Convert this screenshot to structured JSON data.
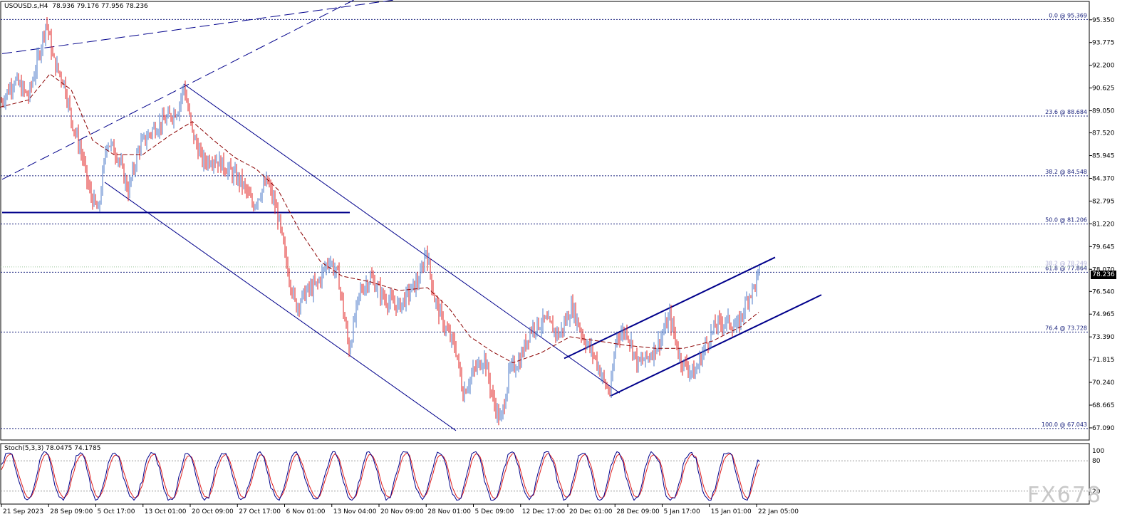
{
  "header": {
    "symbol_text": "USOUSD.s,H4  78.936 79.176 77.956 78.236"
  },
  "stoch_header": {
    "text": "Stoch(5,3,3) 78.0475 74.1785"
  },
  "watermark": "FX678",
  "current_price_label": "78.236",
  "colors": {
    "bull": "#4b78c8",
    "bear": "#e02020",
    "ma": "#8b0000",
    "channel": "#00008b",
    "fib": "#1a237e",
    "stoch_main": "#00008b",
    "stoch_signal": "#e02020"
  },
  "chart_data": {
    "type": "candlestick",
    "symbol": "USOUSD.s",
    "timeframe": "H4",
    "ohlc_last": {
      "open": 78.936,
      "high": 79.176,
      "low": 77.956,
      "close": 78.236
    },
    "ylim": [
      66.25,
      96.62
    ],
    "y_ticks": [
      "95.350",
      "93.775",
      "92.200",
      "90.625",
      "89.050",
      "87.520",
      "85.945",
      "84.370",
      "82.795",
      "81.220",
      "79.645",
      "78.070",
      "76.540",
      "74.965",
      "73.390",
      "71.815",
      "70.240",
      "68.665",
      "67.090"
    ],
    "x_ticks": [
      "21 Sep 2023",
      "28 Sep 09:00",
      "5 Oct 17:00",
      "13 Oct 01:00",
      "20 Oct 09:00",
      "27 Oct 17:00",
      "6 Nov 01:00",
      "13 Nov 04:00",
      "20 Nov 09:00",
      "28 Nov 01:00",
      "5 Dec 09:00",
      "12 Dec 17:00",
      "20 Dec 01:00",
      "28 Dec 09:00",
      "5 Jan 17:00",
      "15 Jan 01:00",
      "22 Jan 05:00"
    ],
    "fib_levels": [
      {
        "label": "0.0 @ 95.369",
        "value": 95.369
      },
      {
        "label": "23.6 @ 88.684",
        "value": 88.684
      },
      {
        "label": "38.2 @ 84.548",
        "value": 84.548
      },
      {
        "label": "50.0 @ 81.206",
        "value": 81.206
      },
      {
        "label": "61.8 @ 77.864",
        "value": 77.864
      },
      {
        "label": "76.4 @ 73.728",
        "value": 73.728
      },
      {
        "label": "100.0 @ 67.043",
        "value": 67.043
      }
    ],
    "overlapped_label": "38.2 @ 78.249",
    "horizontal_support": 82.0,
    "price_path": [
      [
        0,
        89.5
      ],
      [
        20,
        91.2
      ],
      [
        40,
        90.0
      ],
      [
        55,
        93.0
      ],
      [
        65,
        95.3
      ],
      [
        75,
        92.5
      ],
      [
        90,
        91.0
      ],
      [
        100,
        88.5
      ],
      [
        115,
        86.0
      ],
      [
        125,
        83.5
      ],
      [
        138,
        82.0
      ],
      [
        150,
        87.0
      ],
      [
        165,
        86.0
      ],
      [
        180,
        83.5
      ],
      [
        195,
        86.5
      ],
      [
        215,
        87.8
      ],
      [
        235,
        88.5
      ],
      [
        250,
        89.2
      ],
      [
        258,
        90.8
      ],
      [
        270,
        87.5
      ],
      [
        285,
        85.5
      ],
      [
        300,
        85.8
      ],
      [
        320,
        85.0
      ],
      [
        340,
        84.0
      ],
      [
        355,
        82.5
      ],
      [
        375,
        84.2
      ],
      [
        390,
        81.8
      ],
      [
        400,
        79.0
      ],
      [
        415,
        75.5
      ],
      [
        430,
        76.5
      ],
      [
        445,
        77.0
      ],
      [
        462,
        78.8
      ],
      [
        475,
        77.5
      ],
      [
        490,
        72.5
      ],
      [
        505,
        76.5
      ],
      [
        520,
        77.5
      ],
      [
        540,
        76.0
      ],
      [
        560,
        75.5
      ],
      [
        575,
        76.5
      ],
      [
        590,
        77.5
      ],
      [
        598,
        79.5
      ],
      [
        610,
        76.0
      ],
      [
        625,
        74.0
      ],
      [
        640,
        72.5
      ],
      [
        650,
        69.5
      ],
      [
        665,
        71.0
      ],
      [
        680,
        72.0
      ],
      [
        692,
        69.0
      ],
      [
        703,
        67.5
      ],
      [
        715,
        71.0
      ],
      [
        730,
        71.8
      ],
      [
        745,
        74.0
      ],
      [
        765,
        74.5
      ],
      [
        785,
        73.5
      ],
      [
        803,
        75.5
      ],
      [
        820,
        73.2
      ],
      [
        835,
        72.0
      ],
      [
        850,
        70.0
      ],
      [
        857,
        69.5
      ],
      [
        865,
        73.5
      ],
      [
        880,
        73.8
      ],
      [
        895,
        71.5
      ],
      [
        910,
        72.0
      ],
      [
        925,
        73.0
      ],
      [
        940,
        74.8
      ],
      [
        955,
        71.8
      ],
      [
        975,
        70.8
      ],
      [
        990,
        72.8
      ],
      [
        1005,
        74.2
      ],
      [
        1020,
        74.5
      ],
      [
        1035,
        74.0
      ],
      [
        1050,
        76.2
      ],
      [
        1060,
        77.0
      ],
      [
        1068,
        78.2
      ]
    ],
    "ma_path": [
      [
        0,
        89.3
      ],
      [
        40,
        89.8
      ],
      [
        70,
        91.6
      ],
      [
        100,
        90.5
      ],
      [
        130,
        87.0
      ],
      [
        160,
        86.0
      ],
      [
        200,
        86.0
      ],
      [
        240,
        87.4
      ],
      [
        270,
        88.3
      ],
      [
        300,
        87.0
      ],
      [
        330,
        85.8
      ],
      [
        360,
        85.0
      ],
      [
        390,
        83.6
      ],
      [
        420,
        80.8
      ],
      [
        450,
        78.6
      ],
      [
        480,
        77.6
      ],
      [
        520,
        77.2
      ],
      [
        560,
        76.6
      ],
      [
        600,
        76.8
      ],
      [
        630,
        75.4
      ],
      [
        660,
        73.4
      ],
      [
        690,
        72.4
      ],
      [
        720,
        71.6
      ],
      [
        760,
        72.3
      ],
      [
        800,
        73.4
      ],
      [
        840,
        73.1
      ],
      [
        880,
        72.8
      ],
      [
        920,
        72.6
      ],
      [
        960,
        72.6
      ],
      [
        1000,
        73.1
      ],
      [
        1040,
        74.1
      ],
      [
        1065,
        75.1
      ]
    ],
    "stoch": {
      "ylim": [
        0,
        100
      ],
      "levels": [
        20,
        80
      ],
      "last": {
        "main": 78.0475,
        "signal": 74.1785
      }
    }
  }
}
